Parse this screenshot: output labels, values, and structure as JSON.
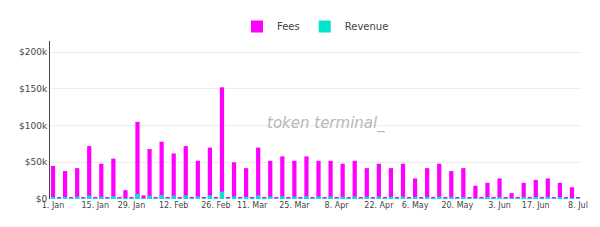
{
  "chart_data": {
    "type": "bar",
    "categories": [
      "1. Jan",
      null,
      null,
      null,
      null,
      null,
      null,
      "15. Jan",
      null,
      null,
      null,
      null,
      null,
      "29. Jan",
      null,
      null,
      null,
      null,
      null,
      null,
      "12. Feb",
      null,
      null,
      null,
      null,
      null,
      null,
      "26. Feb",
      null,
      null,
      null,
      null,
      null,
      "11. Mar",
      null,
      null,
      null,
      null,
      null,
      null,
      "25. Mar",
      null,
      null,
      null,
      null,
      null,
      null,
      "8. Apr",
      null,
      null,
      null,
      null,
      null,
      null,
      "22. Apr",
      null,
      null,
      null,
      null,
      null,
      "6. May",
      null,
      null,
      null,
      null,
      null,
      null,
      "20. May",
      null,
      null,
      null,
      null,
      null,
      null,
      "3. Jun",
      null,
      null,
      null,
      null,
      null,
      "17. Jun",
      null,
      null,
      null,
      null,
      null,
      null,
      "8. Jul"
    ],
    "series": [
      {
        "name": "Fees",
        "color": "#ff00ff",
        "values": [
          45000,
          2000,
          38000,
          2000,
          42000,
          2000,
          72000,
          2000,
          48000,
          2000,
          55000,
          2000,
          12000,
          2000,
          105000,
          5000,
          68000,
          2000,
          78000,
          2000,
          62000,
          2000,
          72000,
          2000,
          52000,
          2000,
          70000,
          2000,
          152000,
          2000,
          50000,
          2000,
          42000,
          2000,
          70000,
          2000,
          52000,
          2000,
          58000,
          2000,
          52000,
          2000,
          58000,
          2000,
          52000,
          2000,
          52000,
          2000,
          48000,
          2000,
          52000,
          2000,
          42000,
          2000,
          48000,
          2000,
          42000,
          2000,
          48000,
          2000,
          28000,
          2000,
          42000,
          2000,
          48000,
          2000,
          38000,
          2000,
          42000,
          2000,
          18000,
          2000,
          22000,
          2000,
          28000,
          2000,
          8000,
          2000,
          22000,
          2000,
          26000,
          2000,
          28000,
          2000,
          22000,
          2000,
          16000,
          2000
        ]
      },
      {
        "name": "Revenue",
        "color": "#00e5cc",
        "values": [
          2500,
          300,
          2500,
          300,
          3000,
          300,
          4500,
          300,
          3000,
          300,
          4000,
          300,
          800,
          300,
          7000,
          500,
          4500,
          300,
          5500,
          300,
          4500,
          300,
          5000,
          300,
          3500,
          300,
          5000,
          300,
          10000,
          300,
          3500,
          300,
          3000,
          300,
          5000,
          300,
          3500,
          300,
          4000,
          300,
          3500,
          300,
          4000,
          300,
          3500,
          300,
          3500,
          300,
          3000,
          300,
          3500,
          300,
          3000,
          300,
          3200,
          300,
          3000,
          300,
          3200,
          300,
          1800,
          300,
          2800,
          300,
          3200,
          300,
          2500,
          300,
          2800,
          300,
          1200,
          300,
          1500,
          300,
          1800,
          200,
          600,
          200,
          1500,
          300,
          1700,
          200,
          1800,
          200,
          1500,
          200,
          1100,
          200
        ]
      }
    ],
    "ylim": [
      0,
      215000
    ],
    "yticks": [
      {
        "value": 0,
        "label": "$0"
      },
      {
        "value": 50000,
        "label": "$50k"
      },
      {
        "value": 100000,
        "label": "$100k"
      },
      {
        "value": 150000,
        "label": "$150k"
      },
      {
        "value": 200000,
        "label": "$200k"
      }
    ],
    "grid": true,
    "legend": "top",
    "annotations": [
      "token terminal_"
    ]
  }
}
